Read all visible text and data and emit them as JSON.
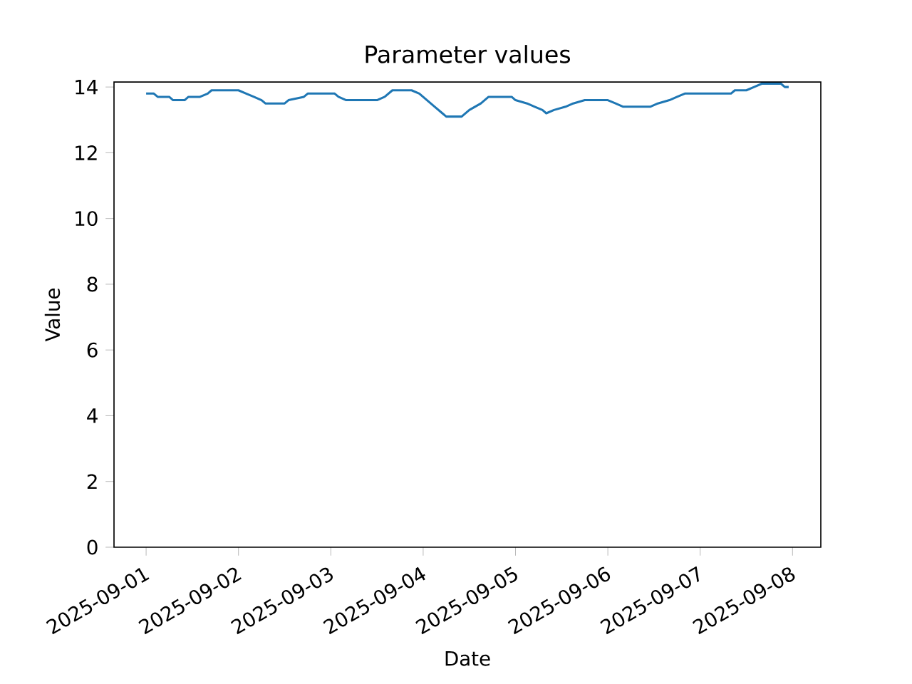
{
  "chart_data": {
    "type": "line",
    "title": "Parameter values",
    "xlabel": "Date",
    "ylabel": "Value",
    "x": [
      "2025-09-01T00:00",
      "2025-09-01T02:00",
      "2025-09-01T03:00",
      "2025-09-01T06:00",
      "2025-09-01T07:00",
      "2025-09-01T10:00",
      "2025-09-01T11:00",
      "2025-09-01T14:00",
      "2025-09-01T16:00",
      "2025-09-01T17:00",
      "2025-09-02T00:00",
      "2025-09-02T02:00",
      "2025-09-02T04:00",
      "2025-09-02T06:00",
      "2025-09-02T07:00",
      "2025-09-02T12:00",
      "2025-09-02T13:00",
      "2025-09-02T17:00",
      "2025-09-02T18:00",
      "2025-09-03T01:00",
      "2025-09-03T02:00",
      "2025-09-03T04:00",
      "2025-09-03T12:00",
      "2025-09-03T14:00",
      "2025-09-03T16:00",
      "2025-09-03T21:00",
      "2025-09-03T23:00",
      "2025-09-04T01:00",
      "2025-09-04T03:00",
      "2025-09-04T05:00",
      "2025-09-04T06:00",
      "2025-09-04T10:00",
      "2025-09-04T12:00",
      "2025-09-04T15:00",
      "2025-09-04T17:00",
      "2025-09-04T23:00",
      "2025-09-05T00:00",
      "2025-09-05T03:00",
      "2025-09-05T05:00",
      "2025-09-05T07:00",
      "2025-09-05T08:00",
      "2025-09-05T10:00",
      "2025-09-05T13:00",
      "2025-09-05T15:00",
      "2025-09-05T18:00",
      "2025-09-06T00:00",
      "2025-09-06T02:00",
      "2025-09-06T04:00",
      "2025-09-06T11:00",
      "2025-09-06T13:00",
      "2025-09-06T16:00",
      "2025-09-06T18:00",
      "2025-09-06T20:00",
      "2025-09-07T08:00",
      "2025-09-07T09:00",
      "2025-09-07T12:00",
      "2025-09-07T14:00",
      "2025-09-07T16:00",
      "2025-09-07T21:00",
      "2025-09-07T22:00",
      "2025-09-07T23:00"
    ],
    "series": [
      {
        "color": "#1f77b4",
        "values": [
          13.8,
          13.8,
          13.7,
          13.7,
          13.6,
          13.6,
          13.7,
          13.7,
          13.8,
          13.9,
          13.9,
          13.8,
          13.7,
          13.6,
          13.5,
          13.5,
          13.6,
          13.7,
          13.8,
          13.8,
          13.7,
          13.6,
          13.6,
          13.7,
          13.9,
          13.9,
          13.8,
          13.6,
          13.4,
          13.2,
          13.1,
          13.1,
          13.3,
          13.5,
          13.7,
          13.7,
          13.6,
          13.5,
          13.4,
          13.3,
          13.2,
          13.3,
          13.4,
          13.5,
          13.6,
          13.6,
          13.5,
          13.4,
          13.4,
          13.5,
          13.6,
          13.7,
          13.8,
          13.8,
          13.9,
          13.9,
          14.0,
          14.1,
          14.1,
          14.0,
          14.0
        ]
      }
    ],
    "xlim": [
      "2025-08-31T15:39",
      "2025-09-08T07:21"
    ],
    "xticks": [
      {
        "value": "2025-09-01",
        "label": "2025-09-01"
      },
      {
        "value": "2025-09-02",
        "label": "2025-09-02"
      },
      {
        "value": "2025-09-03",
        "label": "2025-09-03"
      },
      {
        "value": "2025-09-04",
        "label": "2025-09-04"
      },
      {
        "value": "2025-09-05",
        "label": "2025-09-05"
      },
      {
        "value": "2025-09-06",
        "label": "2025-09-06"
      },
      {
        "value": "2025-09-07",
        "label": "2025-09-07"
      },
      {
        "value": "2025-09-08",
        "label": "2025-09-08"
      }
    ],
    "ylim": [
      0,
      14.15
    ],
    "yticks": [
      0,
      2,
      4,
      6,
      8,
      10,
      12,
      14
    ],
    "marker": "none",
    "line_style": "solid"
  }
}
